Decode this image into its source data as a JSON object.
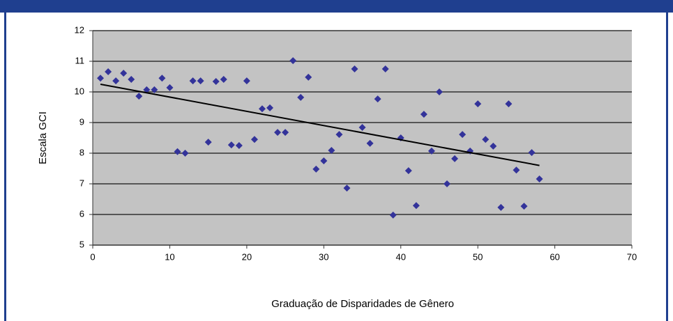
{
  "chart_data": {
    "type": "scatter",
    "xlabel": "Graduação de Disparidades de Gênero",
    "ylabel": "Escala GCI",
    "series": [
      {
        "name": "GCI",
        "color": "#33339a",
        "x": [
          1,
          2,
          3,
          4,
          5,
          6,
          7,
          8,
          9,
          10,
          11,
          12,
          13,
          14,
          15,
          16,
          17,
          18,
          19,
          20,
          21,
          22,
          23,
          24,
          25,
          26,
          27,
          28,
          29,
          30,
          31,
          32,
          33,
          34,
          35,
          36,
          37,
          38,
          39,
          40,
          41,
          42,
          43,
          44,
          45,
          46,
          47,
          48,
          49,
          50,
          51,
          52,
          53,
          54,
          55,
          56,
          57,
          58
        ],
        "values": [
          10.45,
          10.66,
          10.36,
          10.61,
          10.41,
          9.86,
          10.07,
          10.07,
          10.45,
          10.14,
          8.05,
          8.0,
          10.36,
          10.36,
          8.36,
          10.34,
          10.41,
          8.27,
          8.25,
          10.36,
          8.45,
          9.45,
          9.48,
          8.68,
          8.68,
          11.02,
          9.82,
          10.48,
          7.48,
          7.75,
          8.09,
          8.61,
          6.86,
          10.75,
          8.84,
          8.32,
          9.77,
          10.75,
          5.98,
          8.5,
          7.43,
          6.29,
          9.27,
          8.07,
          10.0,
          7.0,
          7.82,
          8.61,
          8.07,
          9.61,
          8.45,
          8.23,
          6.23,
          9.61,
          7.45,
          6.27,
          8.02,
          7.16
        ]
      }
    ],
    "trendline": {
      "color": "#000000",
      "x": [
        1,
        58
      ],
      "values": [
        10.25,
        7.6
      ]
    },
    "xlim": [
      0,
      70
    ],
    "xticks": [
      0,
      10,
      20,
      30,
      40,
      50,
      60,
      70
    ],
    "ylim": [
      5,
      12
    ],
    "yticks": [
      5,
      6,
      7,
      8,
      9,
      10,
      11,
      12
    ],
    "grid": true
  }
}
